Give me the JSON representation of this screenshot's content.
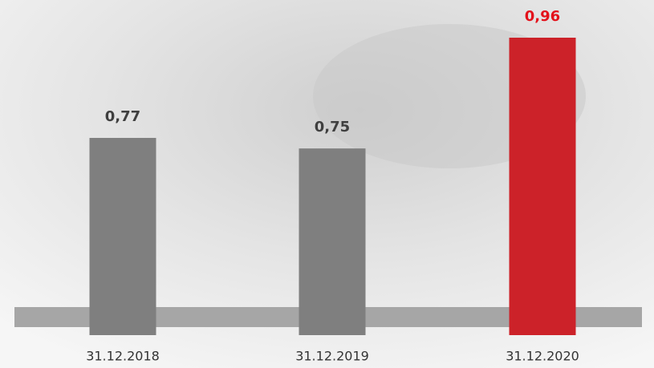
{
  "chart_data": {
    "type": "bar",
    "categories": [
      "31.12.2018",
      "31.12.2019",
      "31.12.2020"
    ],
    "values": [
      0.77,
      0.75,
      0.96
    ],
    "value_labels": [
      "0,77",
      "0,75",
      "0,96"
    ],
    "colors": [
      "#7f7f7f",
      "#7f7f7f",
      "#cc2229"
    ],
    "label_colors": [
      "#3f3f3f",
      "#3f3f3f",
      "#e3121b"
    ]
  }
}
